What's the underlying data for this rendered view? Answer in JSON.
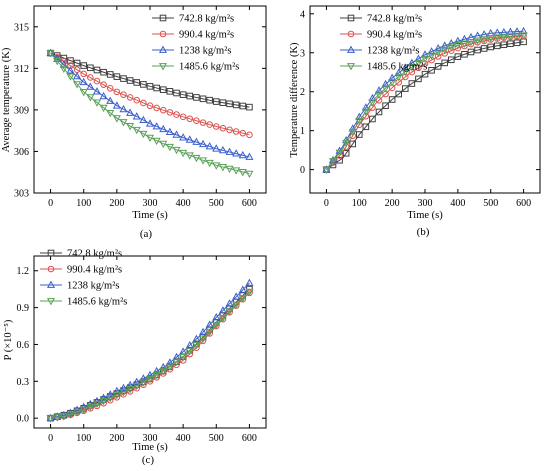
{
  "figure": {
    "panel_labels": [
      "(a)",
      "(b)",
      "(c)"
    ]
  },
  "chart_data": [
    {
      "type": "line",
      "panel": "(a)",
      "title": "",
      "xlabel": "Time (s)",
      "ylabel": "Average temperature (K)",
      "xlim": [
        -50,
        650
      ],
      "ylim": [
        303,
        316.5
      ],
      "xticks": [
        0,
        100,
        200,
        300,
        400,
        500,
        600
      ],
      "yticks": [
        303,
        306,
        309,
        312,
        315
      ],
      "xtick_labels": [
        "0",
        "100",
        "200",
        "300",
        "400",
        "500",
        "600"
      ],
      "ytick_labels": [
        "303",
        "306",
        "309",
        "312",
        "315"
      ],
      "legend": {
        "position": "top-right",
        "entries": [
          "742.8 kg/m²s",
          "990.4 kg/m²s",
          "1238 kg/m²s",
          "1485.6 kg/m²s"
        ]
      },
      "series": [
        {
          "name": "742.8 kg/m²s",
          "color": "#404040",
          "marker": "square",
          "x": [
            0,
            100,
            200,
            300,
            400,
            500,
            600
          ],
          "y": [
            313.1,
            312.2,
            311.4,
            310.7,
            310.1,
            309.6,
            309.2
          ]
        },
        {
          "name": "990.4 kg/m²s",
          "color": "#d9534f",
          "marker": "circle",
          "x": [
            0,
            100,
            200,
            300,
            400,
            500,
            600
          ],
          "y": [
            313.1,
            311.6,
            310.3,
            309.3,
            308.5,
            307.8,
            307.2
          ]
        },
        {
          "name": "1238 kg/m²s",
          "color": "#3a5fcd",
          "marker": "triangle-up",
          "x": [
            0,
            100,
            200,
            300,
            400,
            500,
            600
          ],
          "y": [
            313.1,
            311.0,
            309.3,
            308.0,
            307.0,
            306.2,
            305.6
          ]
        },
        {
          "name": "1485.6 kg/m²s",
          "color": "#5aa05a",
          "marker": "triangle-down",
          "x": [
            0,
            100,
            200,
            300,
            400,
            500,
            600
          ],
          "y": [
            313.1,
            310.3,
            308.4,
            307.0,
            305.9,
            305.0,
            304.4
          ]
        }
      ]
    },
    {
      "type": "line",
      "panel": "(b)",
      "title": "",
      "xlabel": "Time (s)",
      "ylabel": "Temperature difference (K)",
      "xlim": [
        -50,
        650
      ],
      "ylim": [
        -0.6,
        4.2
      ],
      "xticks": [
        0,
        100,
        200,
        300,
        400,
        500,
        600
      ],
      "yticks": [
        0,
        1,
        2,
        3,
        4
      ],
      "xtick_labels": [
        "0",
        "100",
        "200",
        "300",
        "400",
        "500",
        "600"
      ],
      "ytick_labels": [
        "0",
        "1",
        "2",
        "3",
        "4"
      ],
      "legend": {
        "position": "top-right",
        "entries": [
          "742.8 kg/m²s",
          "990.4 kg/m²s",
          "1238 kg/m²s",
          "1485.6 kg/m²s"
        ]
      },
      "series": [
        {
          "name": "742.8 kg/m²s",
          "color": "#404040",
          "marker": "square",
          "x": [
            0,
            50,
            100,
            150,
            200,
            250,
            300,
            350,
            400,
            450,
            500,
            550,
            600
          ],
          "y": [
            0,
            0.3,
            0.9,
            1.4,
            1.8,
            2.15,
            2.45,
            2.7,
            2.9,
            3.05,
            3.15,
            3.22,
            3.28
          ]
        },
        {
          "name": "990.4 kg/m²s",
          "color": "#d9534f",
          "marker": "circle",
          "x": [
            0,
            50,
            100,
            150,
            200,
            250,
            300,
            350,
            400,
            450,
            500,
            550,
            600
          ],
          "y": [
            0,
            0.45,
            1.15,
            1.7,
            2.1,
            2.45,
            2.72,
            2.95,
            3.12,
            3.25,
            3.34,
            3.4,
            3.43
          ]
        },
        {
          "name": "1238 kg/m²s",
          "color": "#3a5fcd",
          "marker": "triangle-up",
          "x": [
            0,
            50,
            100,
            150,
            200,
            250,
            300,
            350,
            400,
            450,
            500,
            550,
            600
          ],
          "y": [
            0,
            0.6,
            1.35,
            1.95,
            2.35,
            2.68,
            2.95,
            3.15,
            3.3,
            3.42,
            3.5,
            3.53,
            3.55
          ]
        },
        {
          "name": "1485.6 kg/m²s",
          "color": "#5aa05a",
          "marker": "triangle-down",
          "x": [
            0,
            50,
            100,
            150,
            200,
            250,
            300,
            350,
            400,
            450,
            500,
            550,
            600
          ],
          "y": [
            0,
            0.55,
            1.25,
            1.85,
            2.25,
            2.58,
            2.85,
            3.05,
            3.2,
            3.3,
            3.38,
            3.42,
            3.45
          ]
        }
      ]
    },
    {
      "type": "line",
      "panel": "(c)",
      "title": "",
      "xlabel": "Time (s)",
      "ylabel": "P (×10⁻⁵)",
      "xlim": [
        -50,
        650
      ],
      "ylim": [
        -0.08,
        1.32
      ],
      "xticks": [
        0,
        100,
        200,
        300,
        400,
        500,
        600
      ],
      "yticks": [
        0.0,
        0.3,
        0.6,
        0.9,
        1.2
      ],
      "xtick_labels": [
        "0",
        "100",
        "200",
        "300",
        "400",
        "500",
        "600"
      ],
      "ytick_labels": [
        "0.0",
        "0.3",
        "0.6",
        "0.9",
        "1.2"
      ],
      "legend": {
        "position": "top-left",
        "entries": [
          "742.8 kg/m²s",
          "990.4 kg/m²s",
          "1238 kg/m²s",
          "1485.6 kg/m²s"
        ]
      },
      "series": [
        {
          "name": "742.8 kg/m²s",
          "color": "#404040",
          "marker": "square",
          "x": [
            0,
            50,
            100,
            150,
            200,
            250,
            300,
            350,
            400,
            450,
            500,
            550,
            600
          ],
          "y": [
            0,
            0.03,
            0.08,
            0.14,
            0.2,
            0.26,
            0.32,
            0.4,
            0.5,
            0.63,
            0.78,
            0.92,
            1.05
          ]
        },
        {
          "name": "990.4 kg/m²s",
          "color": "#d9534f",
          "marker": "circle",
          "x": [
            0,
            50,
            100,
            150,
            200,
            250,
            300,
            350,
            400,
            450,
            500,
            550,
            600
          ],
          "y": [
            0,
            0.02,
            0.06,
            0.11,
            0.17,
            0.23,
            0.3,
            0.38,
            0.47,
            0.6,
            0.75,
            0.89,
            1.02
          ]
        },
        {
          "name": "1238 kg/m²s",
          "color": "#3a5fcd",
          "marker": "triangle-up",
          "x": [
            0,
            50,
            100,
            150,
            200,
            250,
            300,
            350,
            400,
            450,
            500,
            550,
            600
          ],
          "y": [
            0,
            0.03,
            0.09,
            0.15,
            0.22,
            0.28,
            0.35,
            0.43,
            0.54,
            0.67,
            0.82,
            0.96,
            1.1
          ]
        },
        {
          "name": "1485.6 kg/m²s",
          "color": "#5aa05a",
          "marker": "triangle-down",
          "x": [
            0,
            50,
            100,
            150,
            200,
            250,
            300,
            350,
            400,
            450,
            500,
            550,
            600
          ],
          "y": [
            0,
            0.02,
            0.07,
            0.13,
            0.19,
            0.25,
            0.32,
            0.4,
            0.5,
            0.62,
            0.76,
            0.9,
            1.03
          ]
        }
      ]
    }
  ]
}
